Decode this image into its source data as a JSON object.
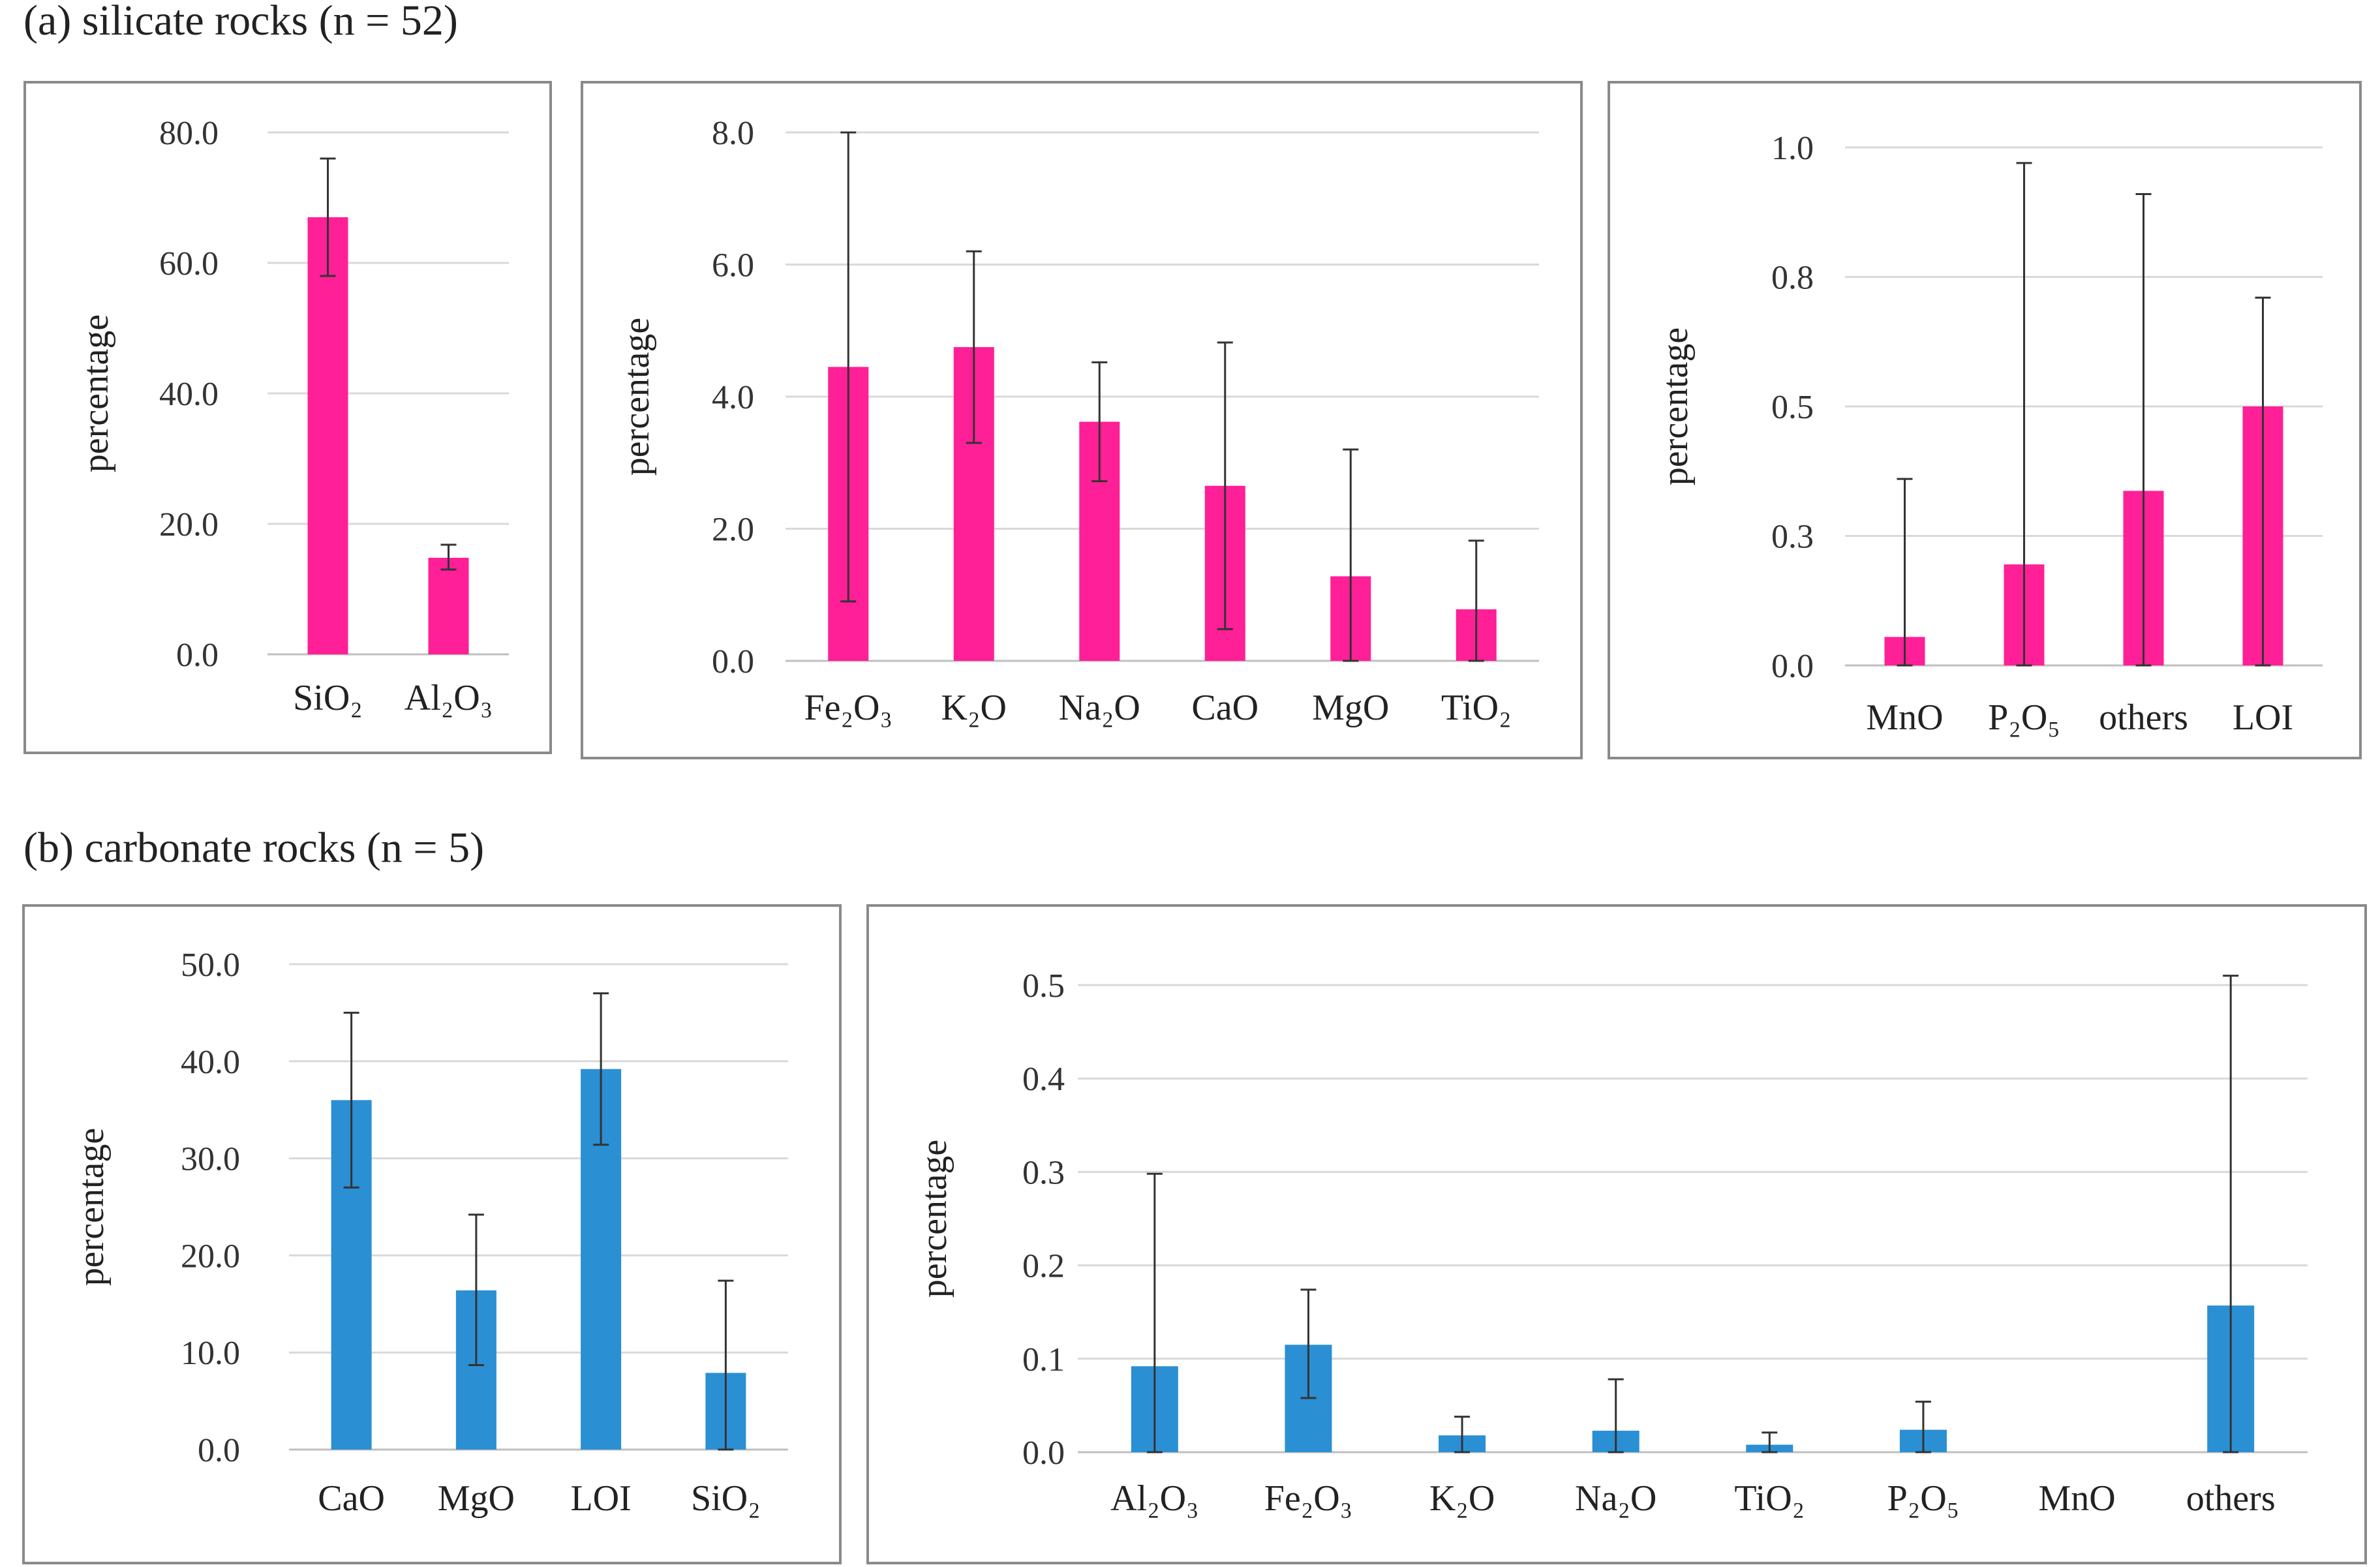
{
  "section_a_title": "(a) silicate rocks (n = 52)",
  "section_b_title": "(b) carbonate rocks (n = 5)",
  "colors": {
    "silicate": "#ff1f96",
    "carbonate": "#2b8fd4"
  },
  "chart_data": [
    {
      "id": "a1",
      "type": "bar",
      "ylabel": "percentage",
      "ylim": [
        0,
        80
      ],
      "ticks": [
        "0.0",
        "20.0",
        "40.0",
        "60.0",
        "80.0"
      ],
      "categories": [
        "SiO₂",
        "Al₂O₃"
      ],
      "values": [
        67.0,
        14.8
      ],
      "err_low": [
        58.0,
        13.0
      ],
      "err_high": [
        76.0,
        16.8
      ]
    },
    {
      "id": "a2",
      "type": "bar",
      "ylabel": "percentage",
      "ylim": [
        0,
        8
      ],
      "ticks": [
        "0.0",
        "2.0",
        "4.0",
        "6.0",
        "8.0"
      ],
      "categories": [
        "Fe₂O₃",
        "K₂O",
        "Na₂O",
        "CaO",
        "MgO",
        "TiO₂"
      ],
      "values": [
        4.45,
        4.75,
        3.62,
        2.65,
        1.28,
        0.78
      ],
      "err_low": [
        0.9,
        3.3,
        2.72,
        0.48,
        0.0,
        0.0
      ],
      "err_high": [
        8.0,
        6.2,
        4.52,
        4.82,
        3.2,
        1.82
      ]
    },
    {
      "id": "a3",
      "type": "bar",
      "ylabel": "percentage",
      "ylim": [
        0,
        1.0
      ],
      "ticks": [
        "0.0",
        "0.3",
        "0.5",
        "0.8",
        "1.0"
      ],
      "categories": [
        "MnO",
        "P₂O₅",
        "others",
        "LOI"
      ],
      "values": [
        0.055,
        0.195,
        0.337,
        0.5
      ],
      "err_low": [
        0.0,
        0.0,
        0.0,
        0.0
      ],
      "err_high": [
        0.36,
        0.97,
        0.91,
        0.71
      ]
    },
    {
      "id": "b1",
      "type": "bar",
      "ylabel": "percentage",
      "ylim": [
        0,
        50
      ],
      "ticks": [
        "0.0",
        "10.0",
        "20.0",
        "30.0",
        "40.0",
        "50.0"
      ],
      "categories": [
        "CaO",
        "MgO",
        "LOI",
        "SiO₂"
      ],
      "values": [
        36.0,
        16.4,
        39.2,
        7.9
      ],
      "err_low": [
        27.0,
        8.7,
        31.4,
        0.0
      ],
      "err_high": [
        45.0,
        24.2,
        47.0,
        17.4
      ]
    },
    {
      "id": "b2",
      "type": "bar",
      "ylabel": "percentage",
      "ylim": [
        0,
        0.5
      ],
      "ticks": [
        "0.0",
        "0.1",
        "0.2",
        "0.3",
        "0.4",
        "0.5"
      ],
      "categories": [
        "Al₂O₃",
        "Fe₂O₃",
        "K₂O",
        "Na₂O",
        "TiO₂",
        "P₂O₅",
        "MnO",
        "others"
      ],
      "values": [
        0.092,
        0.115,
        0.018,
        0.023,
        0.008,
        0.024,
        0.0,
        0.157
      ],
      "err_low": [
        0.0,
        0.058,
        0.0,
        0.0,
        0.0,
        0.0,
        0.0,
        0.0
      ],
      "err_high": [
        0.298,
        0.174,
        0.038,
        0.078,
        0.021,
        0.054,
        0.0,
        0.51
      ]
    }
  ]
}
